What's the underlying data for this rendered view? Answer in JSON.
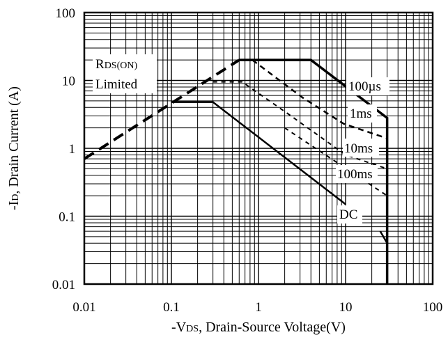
{
  "chart_data": {
    "type": "line",
    "title": "",
    "xscale": "log",
    "yscale": "log",
    "xlim": [
      0.01,
      100
    ],
    "ylim": [
      0.01,
      100
    ],
    "grid": true,
    "x_ticks": [
      "0.01",
      "0.1",
      "1",
      "10",
      "100"
    ],
    "y_ticks": [
      "0.01",
      "0.1",
      "1",
      "10",
      "100"
    ],
    "xlabel": {
      "prefix": "-V",
      "sub": "DS",
      "rest": ", Drain-Source Voltage(V)"
    },
    "ylabel": {
      "prefix": "-I",
      "sub": "D",
      "rest": ", Drain Current (A)"
    },
    "annotations": {
      "rds_line1": "R",
      "rds_line1_sub": "DS(ON)",
      "rds_line2": "Limited",
      "label_100us": "100µs",
      "label_1ms": "1ms",
      "label_10ms": "10ms",
      "label_100ms": "100ms",
      "label_dc": "DC"
    },
    "series": [
      {
        "style": "dashed-thick",
        "points": [
          [
            0.01,
            0.7
          ],
          [
            0.6,
            20
          ]
        ]
      },
      {
        "style": "solid-thick",
        "points": [
          [
            0.6,
            20
          ],
          [
            4,
            20
          ],
          [
            30,
            2.8
          ],
          [
            30,
            0.01
          ]
        ]
      },
      {
        "style": "dashed-medium",
        "points": [
          [
            0.85,
            20
          ],
          [
            3.2,
            5.6
          ],
          [
            9.5,
            2.3
          ],
          [
            30,
            1.4
          ],
          [
            30,
            0.01
          ]
        ]
      },
      {
        "style": "dashed-thin",
        "points": [
          [
            0.3,
            9.5
          ],
          [
            0.65,
            9.5
          ],
          [
            2.2,
            3.2
          ],
          [
            10,
            0.8
          ],
          [
            30,
            0.5
          ],
          [
            30,
            0.01
          ]
        ]
      },
      {
        "style": "dashed-thin",
        "points": [
          [
            2.0,
            2.0
          ],
          [
            30,
            0.2
          ],
          [
            30,
            0.01
          ]
        ]
      },
      {
        "style": "solid-medium",
        "points": [
          [
            0.1,
            4.8
          ],
          [
            0.3,
            4.8
          ],
          [
            10,
            0.15
          ]
        ]
      },
      {
        "style": "solid-medium",
        "points": [
          [
            25,
            0.06
          ],
          [
            30,
            0.04
          ],
          [
            30,
            0.01
          ]
        ]
      }
    ]
  }
}
